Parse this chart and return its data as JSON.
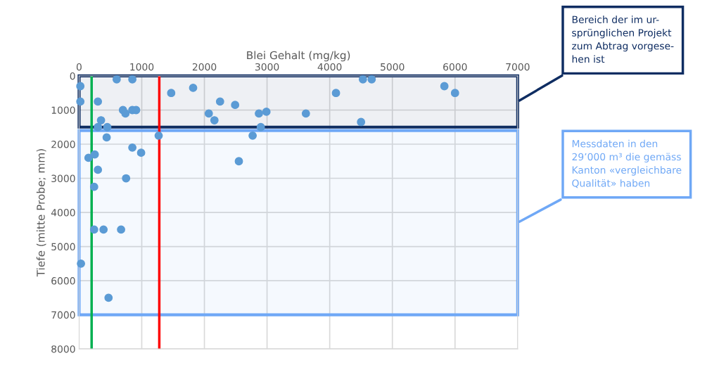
{
  "chart_data": {
    "type": "scatter",
    "xlabel": "Blei Gehalt (mg/kg)",
    "ylabel": "Tiefe (mitte Probe; mm)",
    "xlim": [
      0,
      7000
    ],
    "xticks": [
      0,
      1000,
      2000,
      3000,
      4000,
      5000,
      6000,
      7000
    ],
    "ylim": [
      8000,
      0
    ],
    "yticks": [
      0,
      1000,
      2000,
      3000,
      4000,
      5000,
      6000,
      7000,
      8000
    ],
    "grid": true,
    "marker": "circle",
    "series": [
      {
        "color": "#5b9bd5",
        "x": [
          20,
          20,
          300,
          600,
          850,
          700,
          740,
          850,
          910,
          350,
          300,
          450,
          1470,
          1820,
          2070,
          2160,
          2250,
          2490,
          2870,
          2990,
          2900,
          3620,
          4100,
          4530,
          4670,
          4500,
          5830,
          6000,
          440,
          1270,
          2770,
          850,
          990,
          150,
          250,
          2550,
          300,
          750,
          240,
          240,
          390,
          670,
          30,
          470
        ],
        "values": [
          300,
          750,
          750,
          100,
          100,
          1000,
          1100,
          1000,
          1000,
          1300,
          1500,
          1500,
          500,
          350,
          1100,
          1300,
          750,
          850,
          1100,
          1050,
          1500,
          1100,
          500,
          100,
          100,
          1350,
          300,
          500,
          1800,
          1750,
          1750,
          2100,
          2250,
          2400,
          2300,
          2500,
          2750,
          3000,
          3250,
          4500,
          4500,
          4500,
          5500,
          6500
        ]
      }
    ],
    "ref_lines": [
      {
        "axis": "x",
        "value": 200,
        "color": "#00b050",
        "line_style": "solid"
      },
      {
        "axis": "x",
        "value": 1280,
        "color": "#ff0000",
        "line_style": "solid"
      }
    ],
    "bands": [
      {
        "axis": "y",
        "from": 0,
        "to": 1500,
        "color": "#0f2d62",
        "label": "Bereich der im ur-\nsprünglichen Projekt\nzum Abtrag vorgese-\nhen ist"
      },
      {
        "axis": "y",
        "from": 1600,
        "to": 7000,
        "color": "#6fa8f6",
        "label": "Messdaten in den\n29’000 m³ die gemäss\nKanton «vergleichbare\nQualität» haben"
      }
    ]
  }
}
